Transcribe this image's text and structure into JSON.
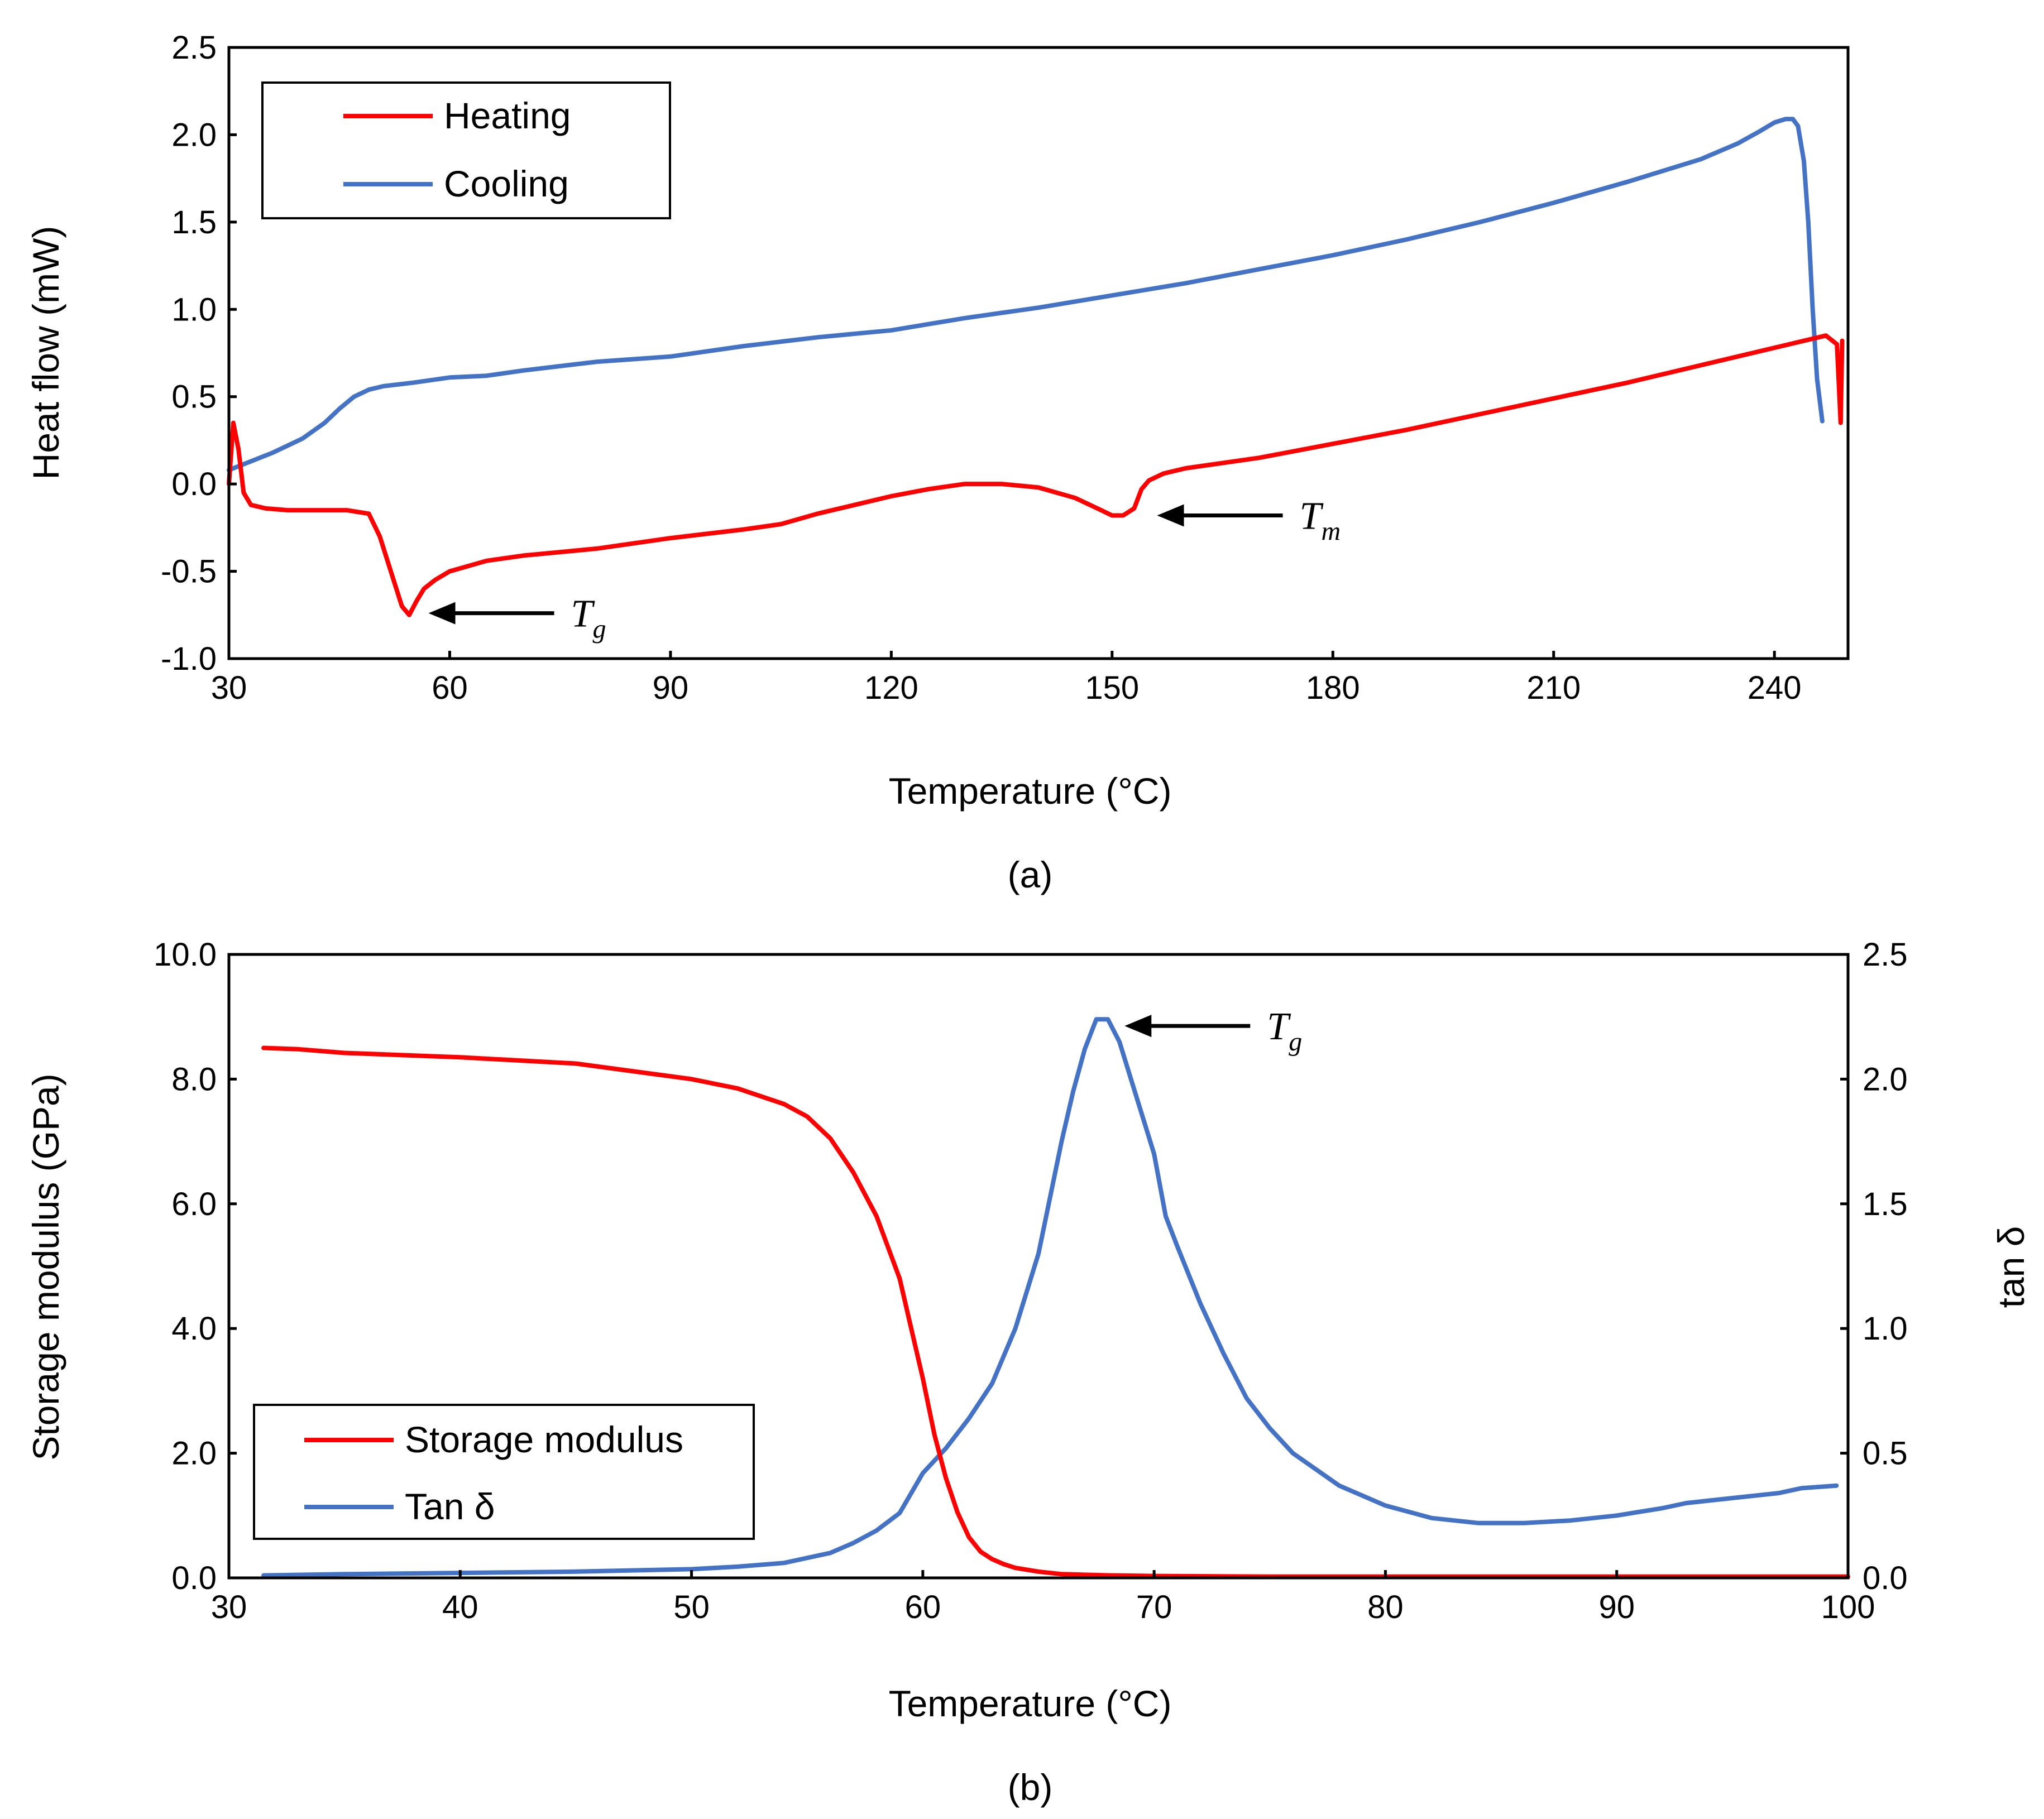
{
  "chart_data": [
    {
      "panel": "(a)",
      "type": "line",
      "xlabel": "Temperature (°C)",
      "ylabel": "Heat flow (mW)",
      "xlim": [
        30,
        250
      ],
      "ylim": [
        -1.0,
        2.5
      ],
      "xticks": [
        "30",
        "60",
        "90",
        "120",
        "150",
        "180",
        "210",
        "240"
      ],
      "yticks": [
        "-1.0",
        "-0.5",
        "0.0",
        "0.5",
        "1.0",
        "1.5",
        "2.0",
        "2.5"
      ],
      "legend_position": "top-left",
      "colors": {
        "heating": "#ff0000",
        "cooling": "#4472c4"
      },
      "series": [
        {
          "name": "Heating",
          "color": "#ff0000",
          "x": [
            30,
            30.6,
            31.3,
            32,
            33,
            35,
            38,
            42,
            46,
            49,
            50.5,
            52,
            53.5,
            54.5,
            55.5,
            56.5,
            58,
            60,
            65,
            70,
            80,
            90,
            100,
            105,
            110,
            115,
            120,
            125,
            130,
            135,
            140,
            145,
            148,
            150,
            151.5,
            153,
            154,
            155,
            157,
            160,
            170,
            180,
            190,
            200,
            210,
            220,
            230,
            240,
            247,
            248.5,
            249,
            249.2
          ],
          "y": [
            0.0,
            0.35,
            0.2,
            -0.05,
            -0.12,
            -0.14,
            -0.15,
            -0.15,
            -0.15,
            -0.17,
            -0.3,
            -0.5,
            -0.7,
            -0.75,
            -0.67,
            -0.6,
            -0.55,
            -0.5,
            -0.44,
            -0.41,
            -0.37,
            -0.31,
            -0.26,
            -0.23,
            -0.17,
            -0.12,
            -0.07,
            -0.03,
            0.0,
            0.0,
            -0.02,
            -0.08,
            -0.14,
            -0.18,
            -0.18,
            -0.14,
            -0.03,
            0.02,
            0.06,
            0.09,
            0.15,
            0.23,
            0.31,
            0.4,
            0.49,
            0.58,
            0.68,
            0.78,
            0.85,
            0.8,
            0.35,
            0.82
          ]
        },
        {
          "name": "Cooling",
          "color": "#4472c4",
          "x": [
            30,
            33,
            36,
            40,
            43,
            45,
            47,
            49,
            51,
            55,
            60,
            65,
            70,
            80,
            90,
            100,
            110,
            120,
            130,
            140,
            150,
            160,
            170,
            180,
            190,
            200,
            210,
            220,
            230,
            235,
            238,
            240,
            241.5,
            242.5,
            243.2,
            244,
            244.6,
            245.2,
            245.8,
            246.5
          ],
          "y": [
            0.08,
            0.13,
            0.18,
            0.26,
            0.35,
            0.43,
            0.5,
            0.54,
            0.56,
            0.58,
            0.61,
            0.62,
            0.65,
            0.7,
            0.73,
            0.79,
            0.84,
            0.88,
            0.95,
            1.01,
            1.08,
            1.15,
            1.23,
            1.31,
            1.4,
            1.5,
            1.61,
            1.73,
            1.86,
            1.95,
            2.02,
            2.07,
            2.09,
            2.09,
            2.05,
            1.85,
            1.5,
            1.0,
            0.6,
            0.36
          ]
        }
      ],
      "annotations": [
        {
          "symbol": "T",
          "subscript": "g",
          "x": 55,
          "y": -0.74
        },
        {
          "symbol": "T",
          "subscript": "m",
          "x": 154,
          "y": -0.18
        }
      ]
    },
    {
      "panel": "(b)",
      "type": "line",
      "xlabel": "Temperature (°C)",
      "ylabel": "Storage modulus (GPa)",
      "y2label": "tan δ",
      "xlim": [
        30,
        100
      ],
      "ylim": [
        0.0,
        10.0
      ],
      "y2lim": [
        0.0,
        2.5
      ],
      "xticks": [
        "30",
        "40",
        "50",
        "60",
        "70",
        "80",
        "90",
        "100"
      ],
      "yticks": [
        "0.0",
        "2.0",
        "4.0",
        "6.0",
        "8.0",
        "10.0"
      ],
      "y2ticks": [
        "0.0",
        "0.5",
        "1.0",
        "1.5",
        "2.0",
        "2.5"
      ],
      "legend_position": "bottom-left",
      "colors": {
        "storage": "#ff0000",
        "tan": "#4472c4"
      },
      "series": [
        {
          "name": "Storage modulus",
          "axis": "left",
          "color": "#ff0000",
          "x": [
            31.5,
            33,
            35,
            40,
            45,
            50,
            52,
            54,
            55,
            56,
            57,
            58,
            59,
            59.5,
            60,
            60.5,
            61,
            61.5,
            62,
            62.5,
            63,
            63.5,
            64,
            65,
            66,
            68,
            70,
            75,
            80,
            90,
            100
          ],
          "y": [
            8.5,
            8.48,
            8.42,
            8.35,
            8.25,
            8.0,
            7.85,
            7.6,
            7.4,
            7.05,
            6.5,
            5.8,
            4.8,
            4.0,
            3.2,
            2.3,
            1.6,
            1.05,
            0.65,
            0.42,
            0.3,
            0.22,
            0.16,
            0.1,
            0.06,
            0.04,
            0.03,
            0.02,
            0.02,
            0.02,
            0.02
          ]
        },
        {
          "name": "Tan δ",
          "axis": "right",
          "color": "#4472c4",
          "x": [
            31.5,
            35,
            40,
            45,
            50,
            52,
            54,
            56,
            57,
            58,
            59,
            60,
            61,
            62,
            63,
            64,
            65,
            66,
            66.5,
            67,
            67.5,
            68,
            68.5,
            69,
            70,
            70.5,
            71,
            72,
            73,
            74,
            75,
            76,
            78,
            80,
            82,
            84,
            86,
            88,
            90,
            92,
            93,
            95,
            97,
            98,
            99.5
          ],
          "y": [
            0.01,
            0.015,
            0.02,
            0.025,
            0.035,
            0.045,
            0.06,
            0.1,
            0.14,
            0.19,
            0.26,
            0.42,
            0.52,
            0.64,
            0.78,
            1.0,
            1.3,
            1.75,
            1.95,
            2.12,
            2.24,
            2.24,
            2.15,
            2.0,
            1.7,
            1.45,
            1.33,
            1.1,
            0.9,
            0.72,
            0.6,
            0.5,
            0.37,
            0.29,
            0.24,
            0.22,
            0.22,
            0.23,
            0.25,
            0.28,
            0.3,
            0.32,
            0.34,
            0.36,
            0.37
          ]
        }
      ],
      "annotations": [
        {
          "symbol": "T",
          "subscript": "g",
          "x": 68,
          "y": 2.24
        }
      ]
    }
  ]
}
